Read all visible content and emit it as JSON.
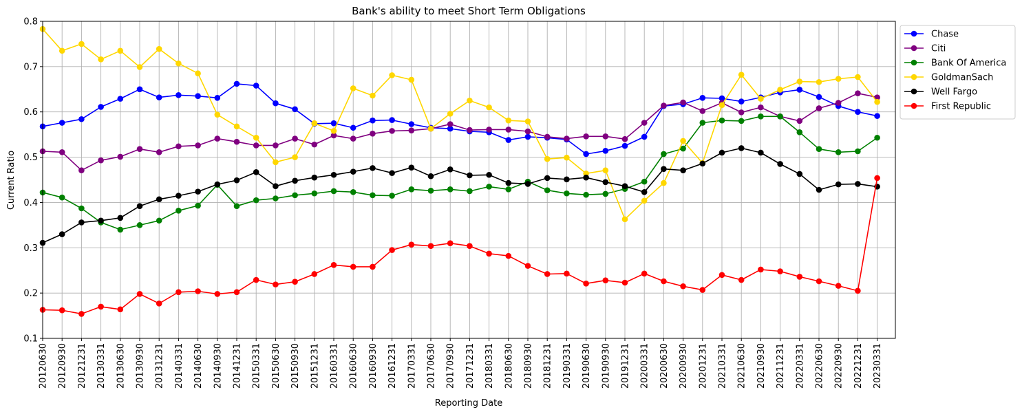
{
  "chart_data": {
    "type": "line",
    "title": "Bank's ability to meet Short Term Obligations",
    "xlabel": "Reporting Date",
    "ylabel": "Current Ratio",
    "ylim": [
      0.1,
      0.8
    ],
    "yticks": [
      "0.1",
      "0.2",
      "0.3",
      "0.4",
      "0.5",
      "0.6",
      "0.7",
      "0.8"
    ],
    "grid": true,
    "legend_position": "outside-top-right",
    "categories": [
      "20120630",
      "20120930",
      "20121231",
      "20130331",
      "20130630",
      "20130930",
      "20131231",
      "20140331",
      "20140630",
      "20140930",
      "20141231",
      "20150331",
      "20150630",
      "20150930",
      "20151231",
      "20160331",
      "20160630",
      "20160930",
      "20161231",
      "20170331",
      "20170630",
      "20170930",
      "20171231",
      "20180331",
      "20180630",
      "20180930",
      "20181231",
      "20190331",
      "20190630",
      "20190930",
      "20191231",
      "20200331",
      "20200630",
      "20200930",
      "20201231",
      "20210331",
      "20210630",
      "20210930",
      "20211231",
      "20220331",
      "20220630",
      "20220930",
      "20221231",
      "20230331"
    ],
    "series": [
      {
        "name": "Chase",
        "color": "#0000ff",
        "values": [
          0.568,
          0.576,
          0.584,
          0.611,
          0.629,
          0.65,
          0.632,
          0.637,
          0.635,
          0.631,
          0.662,
          0.658,
          0.619,
          0.606,
          0.574,
          0.575,
          0.565,
          0.581,
          0.582,
          0.573,
          0.565,
          0.563,
          0.557,
          0.555,
          0.538,
          0.545,
          0.543,
          0.539,
          0.507,
          0.514,
          0.525,
          0.545,
          0.613,
          0.617,
          0.631,
          0.63,
          0.623,
          0.632,
          0.643,
          0.649,
          0.633,
          0.613,
          0.6,
          0.591
        ]
      },
      {
        "name": "Citi",
        "color": "#800080",
        "values": [
          0.513,
          0.511,
          0.471,
          0.493,
          0.501,
          0.518,
          0.511,
          0.524,
          0.526,
          0.541,
          0.534,
          0.526,
          0.526,
          0.541,
          0.528,
          0.548,
          0.541,
          0.552,
          0.558,
          0.559,
          0.563,
          0.573,
          0.56,
          0.561,
          0.561,
          0.557,
          0.545,
          0.541,
          0.546,
          0.546,
          0.54,
          0.576,
          0.614,
          0.621,
          0.602,
          0.62,
          0.599,
          0.61,
          0.59,
          0.58,
          0.608,
          0.62,
          0.641,
          0.632
        ]
      },
      {
        "name": "Bank Of America",
        "color": "#008000",
        "values": [
          0.422,
          0.411,
          0.387,
          0.356,
          0.34,
          0.35,
          0.36,
          0.382,
          0.393,
          0.439,
          0.392,
          0.405,
          0.409,
          0.416,
          0.42,
          0.425,
          0.423,
          0.416,
          0.415,
          0.429,
          0.426,
          0.429,
          0.425,
          0.435,
          0.429,
          0.446,
          0.427,
          0.42,
          0.417,
          0.419,
          0.43,
          0.446,
          0.507,
          0.519,
          0.576,
          0.581,
          0.58,
          0.59,
          0.59,
          0.555,
          0.518,
          0.511,
          0.513,
          0.543
        ]
      },
      {
        "name": "GoldmanSach",
        "color": "#ffd700",
        "values": [
          0.783,
          0.735,
          0.75,
          0.716,
          0.735,
          0.699,
          0.739,
          0.707,
          0.685,
          0.594,
          0.568,
          0.543,
          0.489,
          0.5,
          0.575,
          0.558,
          0.652,
          0.636,
          0.681,
          0.671,
          0.563,
          0.596,
          0.625,
          0.61,
          0.581,
          0.579,
          0.496,
          0.499,
          0.464,
          0.471,
          0.363,
          0.404,
          0.443,
          0.536,
          0.487,
          0.615,
          0.682,
          0.629,
          0.649,
          0.667,
          0.666,
          0.673,
          0.677,
          0.622
        ]
      },
      {
        "name": "Well Fargo",
        "color": "#000000",
        "values": [
          0.311,
          0.33,
          0.356,
          0.36,
          0.366,
          0.392,
          0.407,
          0.415,
          0.424,
          0.44,
          0.449,
          0.467,
          0.436,
          0.448,
          0.455,
          0.461,
          0.468,
          0.476,
          0.465,
          0.477,
          0.458,
          0.473,
          0.46,
          0.461,
          0.443,
          0.441,
          0.454,
          0.451,
          0.455,
          0.445,
          0.436,
          0.423,
          0.474,
          0.471,
          0.486,
          0.51,
          0.52,
          0.51,
          0.485,
          0.463,
          0.428,
          0.44,
          0.441,
          0.435
        ]
      },
      {
        "name": "First Republic",
        "color": "#ff0000",
        "values": [
          0.163,
          0.162,
          0.154,
          0.17,
          0.164,
          0.198,
          0.177,
          0.202,
          0.204,
          0.198,
          0.202,
          0.229,
          0.219,
          0.225,
          0.242,
          0.262,
          0.258,
          0.258,
          0.295,
          0.307,
          0.304,
          0.31,
          0.304,
          0.287,
          0.282,
          0.26,
          0.242,
          0.243,
          0.221,
          0.228,
          0.223,
          0.243,
          0.226,
          0.215,
          0.207,
          0.24,
          0.229,
          0.252,
          0.248,
          0.236,
          0.226,
          0.216,
          0.205,
          0.454
        ]
      }
    ]
  }
}
